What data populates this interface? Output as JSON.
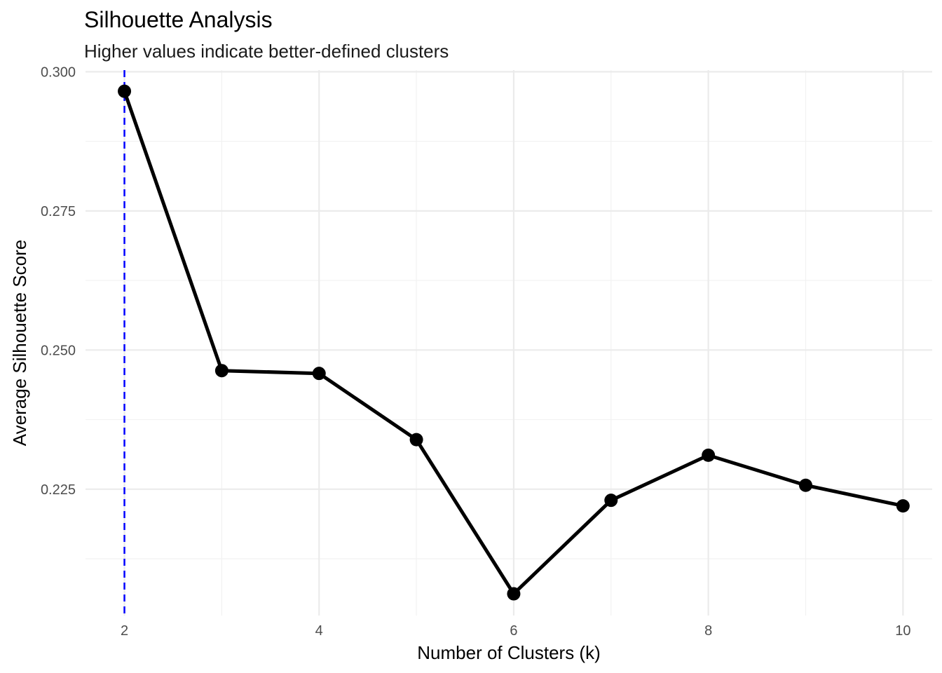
{
  "chart_data": {
    "type": "line",
    "title": "Silhouette Analysis",
    "subtitle": "Higher values indicate better-defined clusters",
    "xlabel": "Number of Clusters (k)",
    "ylabel": "Average Silhouette Score",
    "x": [
      2,
      3,
      4,
      5,
      6,
      7,
      8,
      9,
      10
    ],
    "series": [
      {
        "values": [
          0.2965,
          0.2463,
          0.2458,
          0.2339,
          0.2062,
          0.223,
          0.2311,
          0.2257,
          0.222
        ]
      }
    ],
    "xlim": [
      1.6,
      10.3
    ],
    "ylim": [
      0.2023,
      0.3003
    ],
    "x_ticks": [
      2,
      4,
      6,
      8,
      10
    ],
    "x_tick_labels": [
      "2",
      "4",
      "6",
      "8",
      "10"
    ],
    "y_ticks": [
      0.225,
      0.25,
      0.275,
      0.3
    ],
    "y_tick_labels": [
      "0.225",
      "0.250",
      "0.275",
      "0.300"
    ],
    "vline_x": 2,
    "colors": {
      "line": "#000000",
      "point": "#000000",
      "vline": "#0000ff",
      "grid_major": "#ebebeb",
      "grid_minor": "#f2f2f2"
    },
    "grid": true,
    "legend": "none"
  }
}
